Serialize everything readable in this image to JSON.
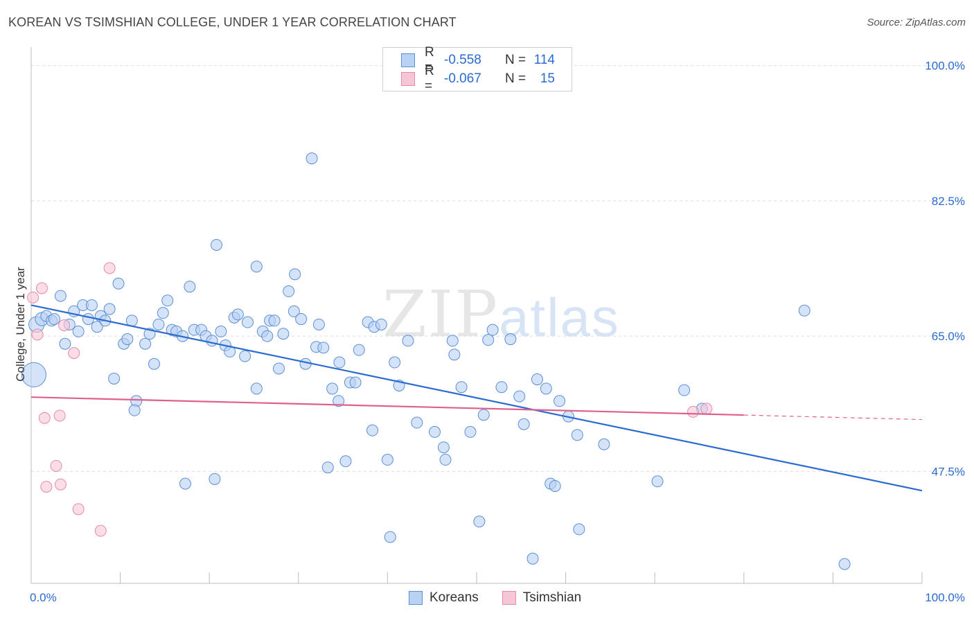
{
  "title": "KOREAN VS TSIMSHIAN COLLEGE, UNDER 1 YEAR CORRELATION CHART",
  "source": "Source: ZipAtlas.com",
  "watermark": {
    "zip": "ZIP",
    "atlas": "atlas"
  },
  "legend": {
    "r_label": "R =",
    "n_label": "N =",
    "rows": [
      {
        "name": "Koreans",
        "r": "-0.558",
        "n": "114"
      },
      {
        "name": "Tsimshian",
        "r": "-0.067",
        "n": "15"
      }
    ]
  },
  "chart_data": {
    "type": "scatter",
    "title": "KOREAN VS TSIMSHIAN COLLEGE, UNDER 1 YEAR CORRELATION CHART",
    "xlabel": "",
    "ylabel": "College, Under 1 year",
    "xlim": [
      0,
      100
    ],
    "ylim": [
      33,
      101.5
    ],
    "x_tick_labels": [
      "0.0%",
      "100.0%"
    ],
    "y_ticks": [
      47.5,
      65.0,
      82.5,
      100.0
    ],
    "y_tick_labels": [
      "47.5%",
      "65.0%",
      "82.5%",
      "100.0%"
    ],
    "grid": true,
    "colors": {
      "koreans": "#5b8fd6",
      "koreans_fill": "#b9d1f3",
      "koreans_line": "#2a6bd1",
      "tsimshian": "#e68aa8",
      "tsimshian_fill": "#f7c6d6",
      "tsimshian_line": "#e0608d",
      "tick_label": "#2a6bd1"
    },
    "series": [
      {
        "name": "Koreans",
        "trend": {
          "x0": 0,
          "y0": 69.0,
          "x1": 100,
          "y1": 45.0,
          "dashed_from": null
        },
        "points": [
          [
            0.3,
            60.0,
            2.2
          ],
          [
            0.6,
            66.5,
            1.4
          ],
          [
            1.2,
            67.2,
            1.2
          ],
          [
            1.7,
            67.6,
            1
          ],
          [
            2.3,
            67.0,
            1
          ],
          [
            2.6,
            67.2,
            1
          ],
          [
            3.3,
            70.2,
            1
          ],
          [
            3.8,
            64.0,
            1
          ],
          [
            4.3,
            66.5,
            1
          ],
          [
            4.8,
            68.2,
            1
          ],
          [
            5.3,
            65.6,
            1
          ],
          [
            5.8,
            69.0,
            1
          ],
          [
            6.4,
            67.2,
            1
          ],
          [
            6.8,
            69.0,
            1
          ],
          [
            7.4,
            66.2,
            1
          ],
          [
            7.8,
            67.6,
            1
          ],
          [
            8.3,
            67.0,
            1
          ],
          [
            8.8,
            68.5,
            1
          ],
          [
            9.3,
            59.5,
            1
          ],
          [
            9.8,
            71.8,
            1
          ],
          [
            10.4,
            64.0,
            1
          ],
          [
            10.8,
            64.6,
            1
          ],
          [
            11.3,
            67.0,
            1
          ],
          [
            11.8,
            56.6,
            1
          ],
          [
            11.6,
            55.4,
            1
          ],
          [
            12.8,
            64.0,
            1
          ],
          [
            13.3,
            65.3,
            1
          ],
          [
            13.8,
            61.4,
            1
          ],
          [
            14.3,
            66.5,
            1
          ],
          [
            14.8,
            68.0,
            1
          ],
          [
            15.3,
            69.6,
            1
          ],
          [
            15.8,
            65.8,
            1
          ],
          [
            16.3,
            65.6,
            1
          ],
          [
            17.0,
            65.0,
            1
          ],
          [
            17.3,
            45.9,
            1
          ],
          [
            17.8,
            71.4,
            1
          ],
          [
            18.3,
            65.8,
            1
          ],
          [
            19.1,
            65.8,
            1
          ],
          [
            19.6,
            65.0,
            1
          ],
          [
            20.3,
            64.4,
            1
          ],
          [
            20.6,
            46.5,
            1
          ],
          [
            20.8,
            76.8,
            1
          ],
          [
            21.3,
            65.6,
            1
          ],
          [
            21.8,
            63.8,
            1
          ],
          [
            22.3,
            63.0,
            1
          ],
          [
            22.8,
            67.4,
            1
          ],
          [
            23.2,
            67.8,
            1
          ],
          [
            24.0,
            62.4,
            1
          ],
          [
            24.3,
            66.8,
            1
          ],
          [
            25.3,
            58.2,
            1
          ],
          [
            25.3,
            74.0,
            1
          ],
          [
            26.0,
            65.6,
            1
          ],
          [
            26.5,
            65.0,
            1
          ],
          [
            26.8,
            67.0,
            1
          ],
          [
            27.3,
            67.0,
            1
          ],
          [
            27.8,
            60.8,
            1
          ],
          [
            28.3,
            65.3,
            1
          ],
          [
            28.9,
            70.8,
            1
          ],
          [
            29.5,
            68.2,
            1
          ],
          [
            29.6,
            73.0,
            1
          ],
          [
            30.3,
            67.2,
            1
          ],
          [
            30.8,
            61.4,
            1
          ],
          [
            31.5,
            88.0,
            1
          ],
          [
            32.0,
            63.6,
            1
          ],
          [
            32.3,
            66.5,
            1
          ],
          [
            32.8,
            63.5,
            1
          ],
          [
            33.3,
            48.0,
            1
          ],
          [
            33.8,
            58.2,
            1
          ],
          [
            34.5,
            56.6,
            1
          ],
          [
            34.6,
            61.6,
            1
          ],
          [
            35.3,
            48.8,
            1
          ],
          [
            35.8,
            59.0,
            1
          ],
          [
            36.4,
            59.0,
            1
          ],
          [
            36.8,
            63.2,
            1
          ],
          [
            37.8,
            66.8,
            1
          ],
          [
            38.3,
            52.8,
            1
          ],
          [
            38.5,
            66.2,
            1
          ],
          [
            39.3,
            66.5,
            1
          ],
          [
            40.0,
            49.0,
            1
          ],
          [
            40.3,
            39.0,
            1
          ],
          [
            40.8,
            61.6,
            1
          ],
          [
            41.3,
            58.6,
            1
          ],
          [
            42.3,
            64.4,
            1
          ],
          [
            43.3,
            53.8,
            1
          ],
          [
            45.3,
            52.6,
            1
          ],
          [
            46.3,
            50.6,
            1
          ],
          [
            46.5,
            49.0,
            1
          ],
          [
            47.3,
            64.4,
            1
          ],
          [
            47.5,
            62.6,
            1
          ],
          [
            48.3,
            58.4,
            1
          ],
          [
            49.3,
            52.6,
            1
          ],
          [
            50.3,
            41.0,
            1
          ],
          [
            50.8,
            54.8,
            1
          ],
          [
            51.3,
            64.5,
            1
          ],
          [
            51.8,
            65.8,
            1
          ],
          [
            52.8,
            58.4,
            1
          ],
          [
            53.8,
            64.6,
            1
          ],
          [
            54.8,
            57.2,
            1
          ],
          [
            55.3,
            53.6,
            1
          ],
          [
            56.3,
            36.2,
            1
          ],
          [
            56.8,
            59.4,
            1
          ],
          [
            57.8,
            58.2,
            1
          ],
          [
            58.3,
            45.9,
            1
          ],
          [
            58.8,
            45.6,
            1
          ],
          [
            59.3,
            56.6,
            1
          ],
          [
            60.3,
            54.6,
            1
          ],
          [
            61.3,
            52.2,
            1
          ],
          [
            61.5,
            40.0,
            1
          ],
          [
            64.3,
            51.0,
            1
          ],
          [
            70.3,
            46.2,
            1
          ],
          [
            73.3,
            58.0,
            1
          ],
          [
            75.3,
            55.6,
            1
          ],
          [
            86.8,
            68.3,
            1
          ],
          [
            91.3,
            35.5,
            1
          ]
        ]
      },
      {
        "name": "Tsimshian",
        "trend": {
          "x0": 0,
          "y0": 57.1,
          "x1": 100,
          "y1": 54.2,
          "dashed_from": 80
        },
        "points": [
          [
            0.2,
            70.0
          ],
          [
            0.7,
            65.2
          ],
          [
            1.2,
            71.2
          ],
          [
            1.5,
            54.4
          ],
          [
            1.7,
            45.5
          ],
          [
            2.8,
            48.2
          ],
          [
            3.2,
            54.7
          ],
          [
            3.3,
            45.8
          ],
          [
            3.7,
            66.4
          ],
          [
            4.8,
            62.8
          ],
          [
            5.3,
            42.6
          ],
          [
            7.8,
            39.8
          ],
          [
            8.8,
            73.8
          ],
          [
            74.3,
            55.2
          ],
          [
            75.8,
            55.6
          ]
        ]
      }
    ]
  }
}
